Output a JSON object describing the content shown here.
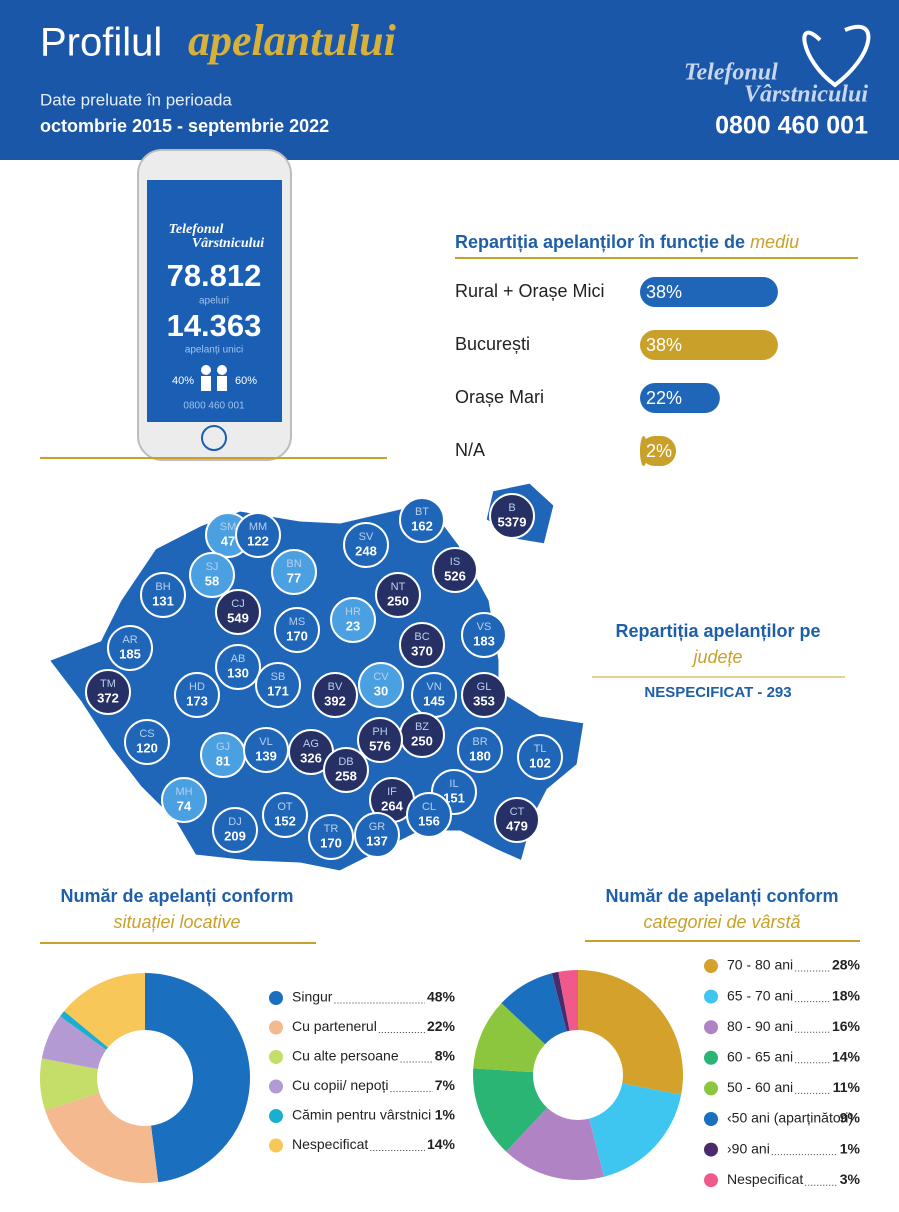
{
  "header": {
    "title": "Profilul",
    "title_accent": "apelantului",
    "subtitle": "Date preluate în perioada",
    "period": "octombrie 2015 - septembrie 2022",
    "logo_line1": "Telefonul",
    "logo_line2": "Vârstnicului",
    "phone": "0800 460 001"
  },
  "phone_screen": {
    "logo_line1": "Telefonul",
    "logo_line2": "Vârstnicului",
    "calls": "78.812",
    "calls_label": "apeluri",
    "unique": "14.363",
    "unique_label": "apelanți unici",
    "female_share": "40%",
    "male_share": "60%",
    "phone": "0800 460 001"
  },
  "chart_data": [
    {
      "type": "bar",
      "title": "Repartiția apelanților în funcție de",
      "title_accent": "mediu",
      "categories": [
        "Rural + Orașe Mici",
        "București",
        "Orașe Mari",
        "N/A"
      ],
      "values": [
        38,
        38,
        22,
        2
      ],
      "value_labels": [
        "38%",
        "38%",
        "22%",
        "2%"
      ],
      "colors": [
        "#1f66b8",
        "#c9a12a",
        "#1f66b8",
        "#c9a12a"
      ]
    },
    {
      "type": "donut",
      "title": "Număr de apelanți conform",
      "subtitle": "situației locative",
      "categories": [
        "Singur",
        "Cu partenerul",
        "Cu alte persoane",
        "Cu copii/ nepoți",
        "Cămin pentru vârstnici",
        "Nespecificat"
      ],
      "values": [
        48,
        22,
        8,
        7,
        1,
        14
      ],
      "value_labels": [
        "48%",
        "22%",
        "8%",
        "7%",
        "1%",
        "14%"
      ],
      "colors": [
        "#1a6fbf",
        "#f4b98f",
        "#c5de6a",
        "#b39ad3",
        "#1aaed0",
        "#f8c75a"
      ]
    },
    {
      "type": "donut",
      "title": "Număr de apelanți conform",
      "subtitle": "categoriei de vârstă",
      "categories": [
        "70 - 80 ani",
        "65 - 70 ani",
        "80 - 90 ani",
        "60 - 65 ani",
        "50 - 60 ani",
        "‹50 ani (aparținători)",
        "›90 ani",
        "Nespecificat"
      ],
      "values": [
        28,
        18,
        16,
        14,
        11,
        9,
        1,
        3
      ],
      "value_labels": [
        "28%",
        "18%",
        "16%",
        "14%",
        "11%",
        "9%",
        "1%",
        "3%"
      ],
      "colors": [
        "#d4a22b",
        "#3ec6f0",
        "#b084c4",
        "#2ab575",
        "#8cc63f",
        "#1a6fbf",
        "#4a2a6a",
        "#f05a8a"
      ]
    }
  ],
  "map": {
    "title": "Repartiția apelanților pe",
    "title_accent": "județe",
    "unspecified": "NESPECIFICAT - 293",
    "counties": [
      {
        "code": "SM",
        "value": 47
      },
      {
        "code": "MM",
        "value": 122
      },
      {
        "code": "BT",
        "value": 162
      },
      {
        "code": "B",
        "value": 5379
      },
      {
        "code": "SV",
        "value": 248
      },
      {
        "code": "IS",
        "value": 526
      },
      {
        "code": "SJ",
        "value": 58
      },
      {
        "code": "BN",
        "value": 77
      },
      {
        "code": "NT",
        "value": 250
      },
      {
        "code": "BH",
        "value": 131
      },
      {
        "code": "CJ",
        "value": 549
      },
      {
        "code": "MS",
        "value": 170
      },
      {
        "code": "HR",
        "value": 23
      },
      {
        "code": "VS",
        "value": 183
      },
      {
        "code": "AR",
        "value": 185
      },
      {
        "code": "BC",
        "value": 370
      },
      {
        "code": "AB",
        "value": 130
      },
      {
        "code": "SB",
        "value": 171
      },
      {
        "code": "CV",
        "value": 30
      },
      {
        "code": "VN",
        "value": 145
      },
      {
        "code": "GL",
        "value": 353
      },
      {
        "code": "TM",
        "value": 372
      },
      {
        "code": "HD",
        "value": 173
      },
      {
        "code": "BV",
        "value": 392
      },
      {
        "code": "BZ",
        "value": 250
      },
      {
        "code": "BR",
        "value": 180
      },
      {
        "code": "CS",
        "value": 120
      },
      {
        "code": "GJ",
        "value": 81
      },
      {
        "code": "VL",
        "value": 139
      },
      {
        "code": "AG",
        "value": 326
      },
      {
        "code": "PH",
        "value": 576
      },
      {
        "code": "DB",
        "value": 258
      },
      {
        "code": "TL",
        "value": 102
      },
      {
        "code": "MH",
        "value": 74
      },
      {
        "code": "IF",
        "value": 264
      },
      {
        "code": "IL",
        "value": 151
      },
      {
        "code": "OT",
        "value": 152
      },
      {
        "code": "DJ",
        "value": 209
      },
      {
        "code": "CL",
        "value": 156
      },
      {
        "code": "CT",
        "value": 479
      },
      {
        "code": "TR",
        "value": 170
      },
      {
        "code": "GR",
        "value": 137
      }
    ]
  }
}
